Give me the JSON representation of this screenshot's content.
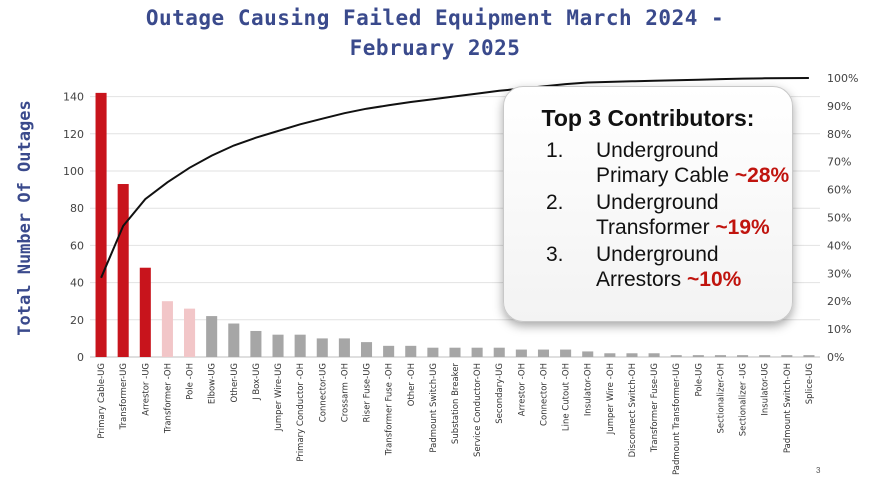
{
  "title_line1": "Outage Causing Failed Equipment March 2024 -",
  "title_line2": "February 2025",
  "chart_data": {
    "type": "bar",
    "title": "Outage Causing Failed Equipment March 2024 - February 2025",
    "ylabel": "Total Number Of Outages",
    "ylim": [
      0,
      150
    ],
    "y_ticks": [
      0,
      20,
      40,
      60,
      80,
      100,
      120,
      140
    ],
    "y2lim": [
      0,
      100
    ],
    "y2_ticks": [
      "0%",
      "10%",
      "20%",
      "30%",
      "40%",
      "50%",
      "60%",
      "70%",
      "80%",
      "90%",
      "100%"
    ],
    "categories": [
      "Primary Cable-UG",
      "Transformer-UG",
      "Arrestor -UG",
      "Transformer -OH",
      "Pole -OH",
      "Elbow-UG",
      "Other-UG",
      "J Box-UG",
      "Jumper Wire-UG",
      "Primary Conductor -OH",
      "Connector-UG",
      "Crossarm -OH",
      "Riser Fuse-UG",
      "Transformer Fuse -OH",
      "Other -OH",
      "Padmount Switch-UG",
      "Substation Breaker",
      "Service Conductor-OH",
      "Secondary-UG",
      "Arrestor -OH",
      "Connector -OH",
      "Line Cutout -OH",
      "Insulator-OH",
      "Jumper Wire -OH",
      "Disconnect Switch-OH",
      "Transformer Fuse-UG",
      "Padmount Transformer-UG",
      "Pole-UG",
      "Sectionalizer-OH",
      "Sectionalizer -UG",
      "Insulator-UG",
      "Padmount Switch-OH",
      "Splice-UG"
    ],
    "series": [
      {
        "name": "Total Number Of Outages",
        "type": "bar",
        "values": [
          142,
          93,
          48,
          30,
          26,
          22,
          18,
          14,
          12,
          12,
          10,
          10,
          8,
          6,
          6,
          5,
          5,
          5,
          5,
          4,
          4,
          4,
          3,
          2,
          2,
          2,
          1,
          1,
          1,
          1,
          1,
          1,
          1
        ]
      },
      {
        "name": "Cumulative %",
        "type": "line",
        "axis": "secondary",
        "values": [
          28.4,
          47.0,
          56.6,
          62.6,
          67.8,
          72.2,
          75.8,
          78.6,
          81.0,
          83.4,
          85.4,
          87.4,
          89.0,
          90.2,
          91.4,
          92.4,
          93.4,
          94.4,
          95.4,
          96.2,
          97.0,
          97.8,
          98.4,
          98.6,
          98.8,
          99.0,
          99.2,
          99.4,
          99.6,
          99.8,
          99.9,
          99.95,
          100
        ]
      }
    ],
    "bar_colors": [
      "#c8141c",
      "#c8141c",
      "#c8141c",
      "#f2c6c8",
      "#f2c6c8",
      "#a6a6a6",
      "#a6a6a6",
      "#a6a6a6",
      "#a6a6a6",
      "#a6a6a6",
      "#a6a6a6",
      "#a6a6a6",
      "#a6a6a6",
      "#a6a6a6",
      "#a6a6a6",
      "#a6a6a6",
      "#a6a6a6",
      "#a6a6a6",
      "#a6a6a6",
      "#a6a6a6",
      "#a6a6a6",
      "#a6a6a6",
      "#a6a6a6",
      "#a6a6a6",
      "#a6a6a6",
      "#a6a6a6",
      "#a6a6a6",
      "#a6a6a6",
      "#a6a6a6",
      "#a6a6a6",
      "#a6a6a6",
      "#a6a6a6",
      "#a6a6a6"
    ],
    "line_color": "#111111",
    "grid": true
  },
  "callout": {
    "heading": "Top 3 Contributors:",
    "items": [
      {
        "num": "1.",
        "line1": "Underground",
        "line2": "Primary Cable",
        "pct": "~28%"
      },
      {
        "num": "2.",
        "line1": "Underground",
        "line2": "Transformer",
        "pct": "~19%"
      },
      {
        "num": "3.",
        "line1": "Underground",
        "line2": "Arrestors",
        "pct": "~10%"
      }
    ]
  },
  "page_number": "3",
  "colors": {
    "title": "#3a4a8c",
    "highlight": "#c0140e"
  }
}
